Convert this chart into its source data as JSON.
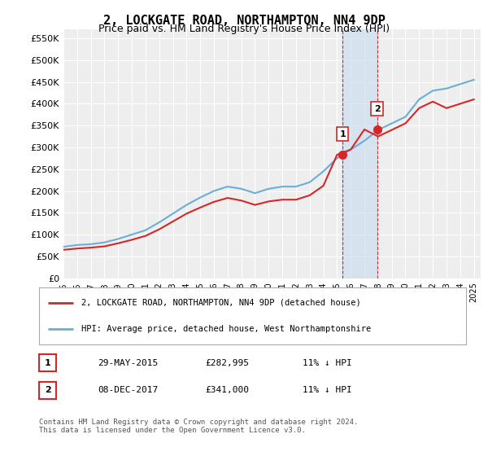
{
  "title": "2, LOCKGATE ROAD, NORTHAMPTON, NN4 9DP",
  "subtitle": "Price paid vs. HM Land Registry's House Price Index (HPI)",
  "title_fontsize": 11,
  "subtitle_fontsize": 9,
  "ylabel_ticks": [
    "£0",
    "£50K",
    "£100K",
    "£150K",
    "£200K",
    "£250K",
    "£300K",
    "£350K",
    "£400K",
    "£450K",
    "£500K",
    "£550K"
  ],
  "ytick_values": [
    0,
    50000,
    100000,
    150000,
    200000,
    250000,
    300000,
    350000,
    400000,
    450000,
    500000,
    550000
  ],
  "ylim": [
    0,
    570000
  ],
  "xlim_start": 1995.0,
  "xlim_end": 2025.5,
  "hpi_color": "#6baed6",
  "price_color": "#d62728",
  "vline_color": "#d62728",
  "shade_color": "#c6dbef",
  "transaction1_date": 2015.41,
  "transaction1_price": 282995,
  "transaction1_label": "1",
  "transaction2_date": 2017.92,
  "transaction2_price": 341000,
  "transaction2_label": "2",
  "legend1_text": "2, LOCKGATE ROAD, NORTHAMPTON, NN4 9DP (detached house)",
  "legend2_text": "HPI: Average price, detached house, West Northamptonshire",
  "table_row1": [
    "1",
    "29-MAY-2015",
    "£282,995",
    "11% ↓ HPI"
  ],
  "table_row2": [
    "2",
    "08-DEC-2017",
    "£341,000",
    "11% ↓ HPI"
  ],
  "footer": "Contains HM Land Registry data © Crown copyright and database right 2024.\nThis data is licensed under the Open Government Licence v3.0.",
  "bg_color": "#ffffff",
  "plot_bg_color": "#eeeeee",
  "grid_color": "#ffffff",
  "hpi_years": [
    1995,
    1996,
    1997,
    1998,
    1999,
    2000,
    2001,
    2002,
    2003,
    2004,
    2005,
    2006,
    2007,
    2008,
    2009,
    2010,
    2011,
    2012,
    2013,
    2014,
    2015,
    2016,
    2017,
    2018,
    2019,
    2020,
    2021,
    2022,
    2023,
    2024,
    2025
  ],
  "hpi_values": [
    72000,
    76000,
    78000,
    82000,
    90000,
    100000,
    110000,
    128000,
    148000,
    168000,
    185000,
    200000,
    210000,
    205000,
    195000,
    205000,
    210000,
    210000,
    220000,
    245000,
    275000,
    295000,
    315000,
    340000,
    355000,
    370000,
    410000,
    430000,
    435000,
    445000,
    455000
  ],
  "price_years": [
    1995,
    1996,
    1997,
    1998,
    1999,
    2000,
    2001,
    2002,
    2003,
    2004,
    2005,
    2006,
    2007,
    2008,
    2009,
    2010,
    2011,
    2012,
    2013,
    2014,
    2015,
    2016,
    2017,
    2018,
    2019,
    2020,
    2021,
    2022,
    2023,
    2024,
    2025
  ],
  "price_values": [
    65000,
    68000,
    70000,
    73000,
    80000,
    88000,
    97000,
    112000,
    130000,
    148000,
    162000,
    175000,
    184000,
    178000,
    168000,
    176000,
    180000,
    180000,
    190000,
    212000,
    283000,
    295000,
    341000,
    325000,
    340000,
    355000,
    390000,
    405000,
    390000,
    400000,
    410000
  ]
}
